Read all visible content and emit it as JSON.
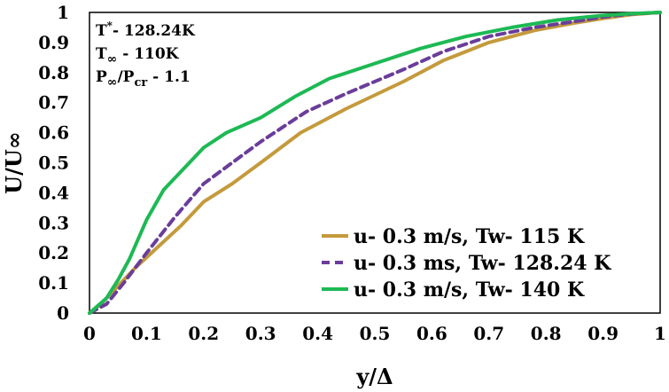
{
  "chart_data": {
    "type": "line",
    "title": "",
    "xlabel": "y/Δ",
    "ylabel": "U/U∞",
    "xlim": [
      0,
      1
    ],
    "ylim": [
      0,
      1
    ],
    "x_ticks": [
      "0",
      "0.1",
      "0.2",
      "0.3",
      "0.4",
      "0.5",
      "0.6",
      "0.7",
      "0.8",
      "0.9",
      "1"
    ],
    "y_ticks": [
      "0",
      "0.1",
      "0.2",
      "0.3",
      "0.4",
      "0.5",
      "0.6",
      "0.7",
      "0.8",
      "0.9",
      "1"
    ],
    "grid": false,
    "legend_position": "bottom-right",
    "annotations": {
      "line1": {
        "main": "T",
        "sup": "*",
        "rest": "- 128.24K"
      },
      "line2": {
        "main": "T",
        "sub": "∞",
        "rest": " - 110K"
      },
      "line3": {
        "main": "P",
        "sub": "∞",
        "mid": "/P",
        "sub2": "cr",
        "rest": " - 1.1"
      }
    },
    "series": [
      {
        "name": "u- 0.3 m/s, Tw- 115 K",
        "color": "#C49A3C",
        "dash": "solid",
        "x": [
          0,
          0.02,
          0.05,
          0.08,
          0.12,
          0.16,
          0.2,
          0.25,
          0.3,
          0.37,
          0.45,
          0.55,
          0.62,
          0.7,
          0.78,
          0.85,
          0.9,
          0.95,
          1.0
        ],
        "y": [
          0,
          0.03,
          0.09,
          0.15,
          0.22,
          0.29,
          0.37,
          0.43,
          0.5,
          0.6,
          0.68,
          0.77,
          0.84,
          0.9,
          0.94,
          0.965,
          0.98,
          0.993,
          1.0
        ]
      },
      {
        "name": "u- 0.3 ms, Tw- 128.24 K",
        "color": "#6A3D9A",
        "dash": "dashed",
        "x": [
          0,
          0.03,
          0.06,
          0.1,
          0.15,
          0.2,
          0.25,
          0.3,
          0.38,
          0.45,
          0.55,
          0.62,
          0.7,
          0.78,
          0.85,
          0.9,
          0.95,
          1.0
        ],
        "y": [
          0,
          0.03,
          0.1,
          0.2,
          0.32,
          0.43,
          0.5,
          0.57,
          0.67,
          0.73,
          0.81,
          0.87,
          0.92,
          0.95,
          0.97,
          0.985,
          0.995,
          1.0
        ]
      },
      {
        "name": "u- 0.3 m/s, Tw- 140 K",
        "color": "#1DB954",
        "dash": "solid",
        "x": [
          0,
          0.03,
          0.05,
          0.07,
          0.1,
          0.13,
          0.17,
          0.2,
          0.24,
          0.3,
          0.36,
          0.42,
          0.5,
          0.58,
          0.66,
          0.74,
          0.82,
          0.9,
          0.95,
          1.0
        ],
        "y": [
          0,
          0.05,
          0.11,
          0.18,
          0.31,
          0.41,
          0.49,
          0.55,
          0.6,
          0.65,
          0.72,
          0.78,
          0.83,
          0.88,
          0.92,
          0.95,
          0.975,
          0.99,
          0.996,
          1.0
        ]
      }
    ]
  }
}
